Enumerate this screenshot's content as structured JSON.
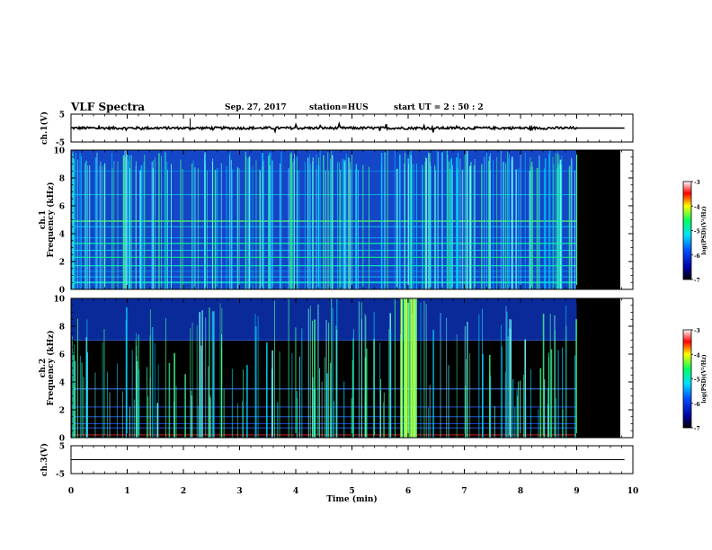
{
  "header": {
    "title": "VLF Spectra",
    "date": "Sep. 27, 2017",
    "station": "station=HUS",
    "start": "start  UT =   2 : 50 : 2"
  },
  "chart_data": {
    "type": "heatmap",
    "x_axis": {
      "label": "Time  (min)",
      "range": [
        0,
        10
      ],
      "ticks": [
        0,
        1,
        2,
        3,
        4,
        5,
        6,
        7,
        8,
        9,
        10
      ],
      "data_end": 9
    },
    "panels": [
      {
        "id": "ch1_waveform",
        "type": "line",
        "ylabel": "ch.1(V)",
        "ylim": [
          -5,
          5
        ],
        "yticks": [
          5,
          -5
        ]
      },
      {
        "id": "ch1_spectrogram",
        "type": "heatmap",
        "ylabel_top": "ch.1",
        "ylabel": "Frequency  (kHz)",
        "ylim": [
          0,
          10
        ],
        "yticks": [
          0,
          2,
          4,
          6,
          8,
          10
        ]
      },
      {
        "id": "ch2_spectrogram",
        "type": "heatmap",
        "ylabel_top": "ch.2",
        "ylabel": "Frequency  (kHz)",
        "ylim": [
          0,
          10
        ],
        "yticks": [
          0,
          2,
          4,
          6,
          8,
          10
        ]
      },
      {
        "id": "ch3_waveform",
        "type": "line",
        "ylabel": "ch.3(V)",
        "ylim": [
          -5,
          5
        ],
        "yticks": [
          5,
          -5
        ]
      }
    ],
    "colorbar": {
      "label": "log(PSD)(V²/Hz)",
      "range": [
        -7,
        -3
      ],
      "ticks": [
        -3,
        -4,
        -5,
        -6,
        -7
      ]
    },
    "colors": {
      "no_data": "#000000",
      "low": "#000080",
      "mid": "#00ffff",
      "high": "#ff0000"
    }
  }
}
